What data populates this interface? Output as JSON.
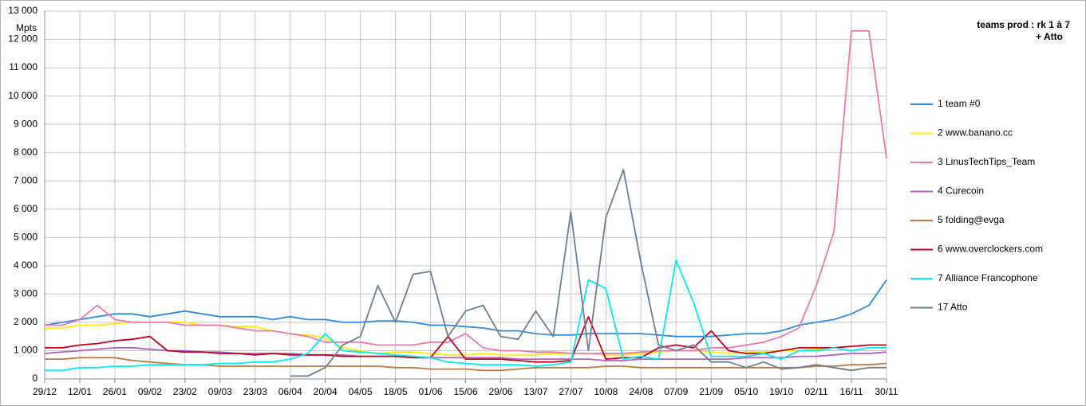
{
  "chart_data": {
    "type": "line",
    "title": [
      "teams prod :  rk 1 à 7",
      "+ Atto"
    ],
    "y_label": "Mpts",
    "categories": [
      "29/12",
      null,
      "12/01",
      null,
      "26/01",
      null,
      "09/02",
      null,
      "23/02",
      null,
      "09/03",
      null,
      "23/03",
      null,
      "06/04",
      null,
      "20/04",
      null,
      "04/05",
      null,
      "18/05",
      null,
      "01/06",
      null,
      "15/06",
      null,
      "29/06",
      null,
      "13/07",
      null,
      "27/07",
      null,
      "10/08",
      null,
      "24/08",
      null,
      "07/09",
      null,
      "21/09",
      null,
      "05/10",
      null,
      "19/10",
      null,
      "02/11",
      null,
      "16/11",
      null,
      "30/11"
    ],
    "ylim": [
      0,
      13000
    ],
    "yticks": [
      0,
      {
        "value": 1000,
        "label": "1 000"
      },
      {
        "value": 2000,
        "label": "2 000"
      },
      {
        "value": 3000,
        "label": "3 000"
      },
      {
        "value": 4000,
        "label": "4 000"
      },
      {
        "value": 5000,
        "label": "5 000"
      },
      {
        "value": 6000,
        "label": "6 000"
      },
      {
        "value": 7000,
        "label": "7 000"
      },
      {
        "value": 8000,
        "label": "8 000"
      },
      {
        "value": 9000,
        "label": "9 000"
      },
      {
        "value": 10000,
        "label": "10 000"
      },
      {
        "value": 11000,
        "label": "11 000"
      },
      {
        "value": 12000,
        "label": "12 000"
      },
      {
        "value": 13000,
        "label": "13 000"
      }
    ],
    "grid": true,
    "legend": "right",
    "series": [
      {
        "name": "1 team #0",
        "color": "#2a8de0",
        "values": [
          1900,
          2000,
          2100,
          2200,
          2300,
          2300,
          2200,
          2300,
          2400,
          2300,
          2200,
          2200,
          2200,
          2100,
          2200,
          2100,
          2100,
          2000,
          2000,
          2050,
          2050,
          2000,
          1900,
          1900,
          1850,
          1800,
          1700,
          1700,
          1600,
          1550,
          1550,
          1600,
          1600,
          1600,
          1600,
          1550,
          1500,
          1500,
          1500,
          1550,
          1600,
          1600,
          1700,
          1900,
          2000,
          2100,
          2300,
          2600,
          3500
        ]
      },
      {
        "name": "2 www.banano.cc",
        "color": "#ffee00",
        "values": [
          1800,
          1800,
          1900,
          1900,
          1950,
          2000,
          2000,
          2000,
          2000,
          1900,
          1900,
          1850,
          1850,
          1700,
          1600,
          1550,
          1450,
          1100,
          1000,
          900,
          950,
          950,
          900,
          850,
          850,
          900,
          850,
          850,
          850,
          900,
          900,
          900,
          850,
          850,
          900,
          950,
          1000,
          1000,
          950,
          900,
          950,
          950,
          1000,
          1000,
          1050,
          1100,
          1150,
          1200,
          1200
        ]
      },
      {
        "name": "3 LinusTechTips_Team",
        "color": "#ee77b0",
        "values": [
          1900,
          1900,
          2100,
          2600,
          2100,
          2000,
          2000,
          2000,
          1900,
          1900,
          1900,
          1800,
          1700,
          1700,
          1600,
          1500,
          1300,
          1300,
          1300,
          1200,
          1200,
          1200,
          1300,
          1300,
          1600,
          1100,
          1000,
          1000,
          950,
          950,
          900,
          900,
          900,
          900,
          950,
          1000,
          1000,
          1000,
          1100,
          1100,
          1200,
          1300,
          1500,
          1800,
          3300,
          5200,
          12300,
          12300,
          7800
        ]
      },
      {
        "name": "4 Curecoin",
        "color": "#b060c8",
        "values": [
          900,
          950,
          1000,
          1050,
          1100,
          1100,
          1050,
          1000,
          1000,
          950,
          950,
          900,
          900,
          900,
          900,
          850,
          850,
          850,
          800,
          800,
          800,
          800,
          750,
          750,
          750,
          750,
          750,
          700,
          700,
          700,
          700,
          700,
          650,
          650,
          700,
          700,
          700,
          700,
          700,
          700,
          750,
          750,
          750,
          800,
          800,
          850,
          900,
          900,
          950
        ]
      },
      {
        "name": "5 folding@evga",
        "color": "#c07a3a",
        "values": [
          700,
          700,
          750,
          750,
          750,
          650,
          600,
          550,
          500,
          500,
          450,
          450,
          450,
          450,
          450,
          450,
          450,
          450,
          450,
          450,
          400,
          400,
          350,
          350,
          350,
          300,
          300,
          350,
          400,
          400,
          400,
          400,
          450,
          450,
          400,
          400,
          400,
          400,
          400,
          400,
          400,
          400,
          400,
          400,
          450,
          450,
          500,
          500,
          550
        ]
      },
      {
        "name": "6 www.overclockers.com",
        "color": "#c8001f",
        "values": [
          1100,
          1100,
          1200,
          1250,
          1350,
          1400,
          1500,
          1000,
          950,
          950,
          900,
          900,
          850,
          900,
          850,
          850,
          850,
          800,
          800,
          800,
          800,
          750,
          750,
          1500,
          700,
          700,
          700,
          650,
          600,
          600,
          650,
          2200,
          700,
          750,
          750,
          1100,
          1200,
          1100,
          1700,
          1000,
          900,
          900,
          1000,
          1100,
          1100,
          1100,
          1150,
          1200,
          1200
        ]
      },
      {
        "name": "7 Alliance Francophone",
        "color": "#00f0f0",
        "values": [
          300,
          300,
          400,
          400,
          450,
          450,
          500,
          500,
          500,
          500,
          550,
          550,
          600,
          600,
          700,
          900,
          1600,
          1000,
          950,
          900,
          850,
          800,
          750,
          600,
          550,
          500,
          500,
          500,
          450,
          500,
          600,
          3500,
          3200,
          700,
          800,
          700,
          4200,
          2700,
          800,
          800,
          800,
          900,
          700,
          1000,
          1000,
          1100,
          1000,
          1100,
          1100
        ]
      },
      {
        "name": "17 Atto",
        "color": "#6e7f8e",
        "values": [
          null,
          null,
          null,
          null,
          null,
          null,
          null,
          null,
          null,
          null,
          null,
          null,
          null,
          null,
          100,
          100,
          400,
          1200,
          1500,
          3300,
          2000,
          3700,
          3800,
          1500,
          2400,
          2600,
          1500,
          1400,
          2400,
          1500,
          5900,
          1000,
          5700,
          7400,
          4100,
          1200,
          1000,
          1200,
          600,
          600,
          400,
          600,
          350,
          400,
          500,
          400,
          300,
          400,
          400
        ]
      }
    ]
  }
}
